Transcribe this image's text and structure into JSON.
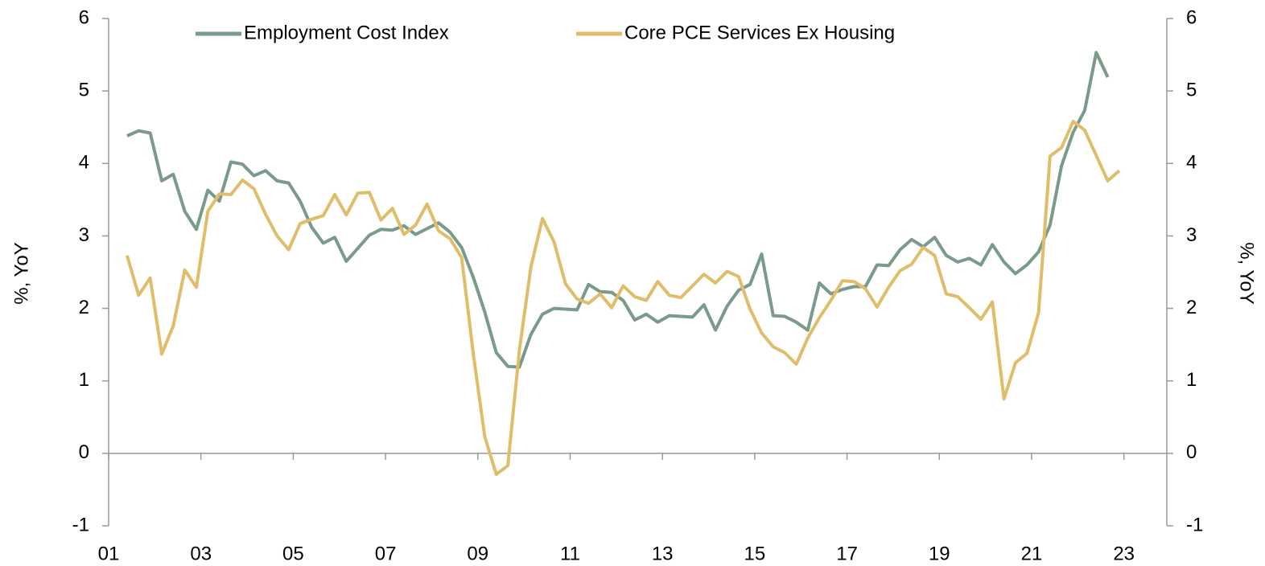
{
  "chart_data": {
    "type": "line",
    "y_label": "%, YoY",
    "y2_label": "%, YoY",
    "x": [
      2001.4,
      2001.65,
      2001.9,
      2002.15,
      2002.4,
      2002.65,
      2002.9,
      2003.15,
      2003.4,
      2003.65,
      2003.9,
      2004.15,
      2004.4,
      2004.65,
      2004.9,
      2005.15,
      2005.4,
      2005.65,
      2005.9,
      2006.15,
      2006.4,
      2006.65,
      2006.9,
      2007.15,
      2007.4,
      2007.65,
      2007.9,
      2008.15,
      2008.4,
      2008.65,
      2008.9,
      2009.15,
      2009.4,
      2009.65,
      2009.9,
      2010.15,
      2010.4,
      2010.65,
      2010.9,
      2011.15,
      2011.4,
      2011.65,
      2011.9,
      2012.15,
      2012.4,
      2012.65,
      2012.9,
      2013.15,
      2013.4,
      2013.65,
      2013.9,
      2014.15,
      2014.4,
      2014.65,
      2014.9,
      2015.15,
      2015.4,
      2015.65,
      2015.9,
      2016.15,
      2016.4,
      2016.65,
      2016.9,
      2017.15,
      2017.4,
      2017.65,
      2017.9,
      2018.15,
      2018.4,
      2018.65,
      2018.9,
      2019.15,
      2019.4,
      2019.65,
      2019.9,
      2020.15,
      2020.4,
      2020.65,
      2020.9,
      2021.15,
      2021.4,
      2021.65,
      2021.9,
      2022.15,
      2022.4,
      2022.65,
      2022.9
    ],
    "series": [
      {
        "name": "Employment Cost Index",
        "color": "#7a9a8a",
        "values": [
          4.38,
          4.45,
          4.42,
          3.76,
          3.85,
          3.34,
          3.09,
          3.63,
          3.48,
          4.02,
          3.99,
          3.83,
          3.9,
          3.76,
          3.73,
          3.48,
          3.12,
          2.9,
          2.98,
          2.65,
          2.83,
          3.01,
          3.09,
          3.08,
          3.14,
          3.02,
          3.1,
          3.18,
          3.05,
          2.84,
          2.43,
          1.95,
          1.39,
          1.2,
          1.19,
          1.64,
          1.92,
          2.0,
          1.99,
          1.98,
          2.33,
          2.23,
          2.22,
          2.11,
          1.84,
          1.92,
          1.81,
          1.9,
          1.89,
          1.88,
          2.05,
          1.7,
          2.03,
          2.25,
          2.33,
          2.75,
          1.9,
          1.89,
          1.81,
          1.7,
          2.35,
          2.2,
          2.26,
          2.3,
          2.3,
          2.6,
          2.59,
          2.81,
          2.95,
          2.85,
          2.98,
          2.73,
          2.64,
          2.69,
          2.6,
          2.88,
          2.64,
          2.48,
          2.6,
          2.78,
          3.15,
          3.97,
          4.43,
          4.73,
          5.53,
          5.19,
          null
        ]
      },
      {
        "name": "Core PCE Services Ex Housing",
        "color": "#e0bd6a",
        "values": [
          2.73,
          2.18,
          2.42,
          1.37,
          1.76,
          2.53,
          2.29,
          3.34,
          3.58,
          3.57,
          3.77,
          3.65,
          3.3,
          3.0,
          2.81,
          3.17,
          3.23,
          3.28,
          3.57,
          3.29,
          3.59,
          3.6,
          3.22,
          3.38,
          3.02,
          3.15,
          3.44,
          3.07,
          2.96,
          2.7,
          1.38,
          0.23,
          -0.29,
          -0.17,
          1.42,
          2.57,
          3.24,
          2.92,
          2.34,
          2.13,
          2.07,
          2.2,
          2.01,
          2.31,
          2.16,
          2.11,
          2.37,
          2.18,
          2.15,
          2.31,
          2.47,
          2.35,
          2.51,
          2.44,
          1.99,
          1.66,
          1.47,
          1.39,
          1.23,
          1.59,
          1.87,
          2.11,
          2.38,
          2.37,
          2.27,
          2.02,
          2.29,
          2.52,
          2.61,
          2.84,
          2.73,
          2.2,
          2.16,
          2.01,
          1.85,
          2.09,
          0.75,
          1.25,
          1.38,
          1.94,
          4.1,
          4.22,
          4.58,
          4.46,
          4.11,
          3.76,
          3.9
        ]
      }
    ],
    "xlim": [
      2001,
      2023.93
    ],
    "xticks": [
      {
        "value": 2001,
        "label": "01"
      },
      {
        "value": 2003,
        "label": "03"
      },
      {
        "value": 2005,
        "label": "05"
      },
      {
        "value": 2007,
        "label": "07"
      },
      {
        "value": 2009,
        "label": "09"
      },
      {
        "value": 2011,
        "label": "11"
      },
      {
        "value": 2013,
        "label": "13"
      },
      {
        "value": 2015,
        "label": "15"
      },
      {
        "value": 2017,
        "label": "17"
      },
      {
        "value": 2019,
        "label": "19"
      },
      {
        "value": 2021,
        "label": "21"
      },
      {
        "value": 2023,
        "label": "23"
      }
    ],
    "ylim": [
      -1,
      6
    ],
    "yticks": [
      -1,
      0,
      1,
      2,
      3,
      4,
      5,
      6
    ],
    "y2lim": [
      -1,
      6
    ],
    "y2ticks": [
      -1,
      0,
      1,
      2,
      3,
      4,
      5,
      6
    ],
    "legend": "top"
  }
}
